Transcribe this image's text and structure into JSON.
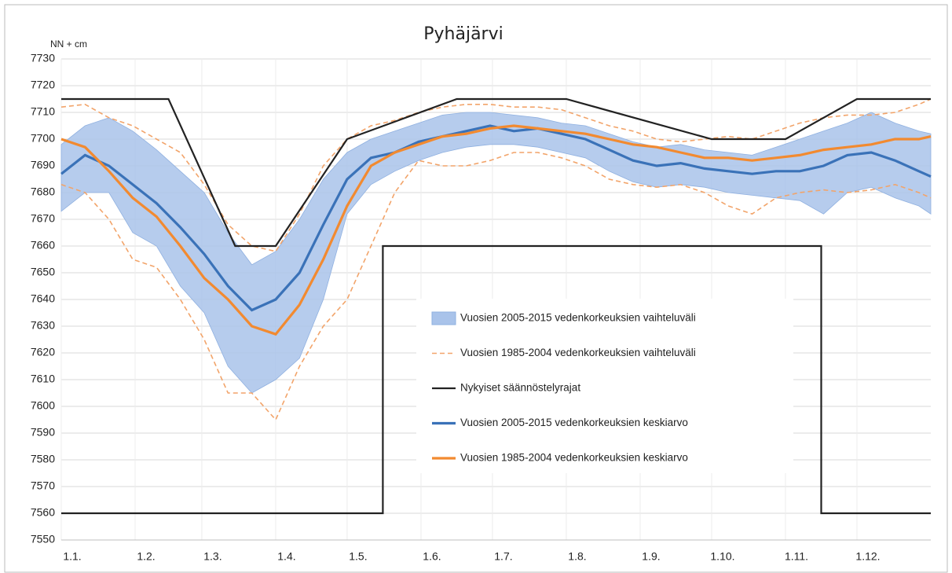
{
  "chart_data": {
    "type": "line",
    "title": "Pyhäjärvi",
    "y_label": "NN + cm",
    "xlim": [
      0,
      365
    ],
    "xticks": [
      {
        "value": 0,
        "label": "1.1."
      },
      {
        "value": 31,
        "label": "1.2."
      },
      {
        "value": 59,
        "label": "1.3."
      },
      {
        "value": 90,
        "label": "1.4."
      },
      {
        "value": 120,
        "label": "1.5."
      },
      {
        "value": 151,
        "label": "1.6."
      },
      {
        "value": 181,
        "label": "1.7."
      },
      {
        "value": 212,
        "label": "1.8."
      },
      {
        "value": 243,
        "label": "1.9."
      },
      {
        "value": 273,
        "label": "1.10."
      },
      {
        "value": 304,
        "label": "1.11."
      },
      {
        "value": 334,
        "label": "1.12."
      }
    ],
    "ylim": [
      7550,
      7730
    ],
    "yticks": [
      7550,
      7560,
      7570,
      7580,
      7590,
      7600,
      7610,
      7620,
      7630,
      7640,
      7650,
      7660,
      7670,
      7680,
      7690,
      7700,
      7710,
      7720,
      7730
    ],
    "grid": true,
    "x": [
      0,
      10,
      20,
      30,
      40,
      50,
      60,
      70,
      80,
      90,
      100,
      110,
      120,
      130,
      140,
      150,
      160,
      170,
      180,
      190,
      200,
      210,
      220,
      230,
      240,
      250,
      260,
      270,
      280,
      290,
      300,
      310,
      320,
      330,
      340,
      350,
      360,
      365
    ],
    "series": [
      {
        "name": "Vuosien 2005-2015 vedenkorkeuksien vaihteluväli",
        "style": "band",
        "color": "#a9c3ea",
        "upper": [
          7698,
          7705,
          7708,
          7703,
          7696,
          7688,
          7680,
          7665,
          7653,
          7658,
          7670,
          7685,
          7695,
          7700,
          7703,
          7706,
          7709,
          7710,
          7710,
          7709,
          7708,
          7706,
          7705,
          7702,
          7699,
          7697,
          7698,
          7696,
          7695,
          7694,
          7697,
          7700,
          7703,
          7706,
          7710,
          7706,
          7703,
          7702
        ],
        "lower": [
          7673,
          7680,
          7680,
          7665,
          7660,
          7645,
          7635,
          7615,
          7605,
          7610,
          7618,
          7640,
          7672,
          7683,
          7688,
          7692,
          7695,
          7697,
          7698,
          7698,
          7697,
          7695,
          7693,
          7688,
          7684,
          7682,
          7683,
          7682,
          7680,
          7679,
          7678,
          7677,
          7672,
          7680,
          7682,
          7678,
          7675,
          7672
        ]
      },
      {
        "name": "Vuosien 1985-2004 vedenkorkeuksien vaihteluväli",
        "style": "dashed",
        "color": "#f2a46a",
        "upper": [
          7712,
          7713,
          7708,
          7705,
          7700,
          7695,
          7683,
          7668,
          7660,
          7658,
          7672,
          7690,
          7700,
          7705,
          7707,
          7710,
          7712,
          7713,
          7713,
          7712,
          7712,
          7711,
          7708,
          7705,
          7703,
          7700,
          7699,
          7700,
          7701,
          7700,
          7703,
          7706,
          7708,
          7709,
          7709,
          7710,
          7713,
          7715
        ],
        "lower": [
          7683,
          7680,
          7670,
          7655,
          7652,
          7640,
          7625,
          7605,
          7605,
          7595,
          7615,
          7630,
          7640,
          7660,
          7680,
          7692,
          7690,
          7690,
          7692,
          7695,
          7695,
          7693,
          7690,
          7685,
          7683,
          7682,
          7683,
          7680,
          7675,
          7672,
          7678,
          7680,
          7681,
          7680,
          7681,
          7683,
          7680,
          7678
        ]
      },
      {
        "name": "Nykyiset säännöstelyrajat",
        "style": "line",
        "color": "#222222",
        "x": [
          0,
          45,
          73,
          90,
          120,
          166,
          212,
          273,
          304,
          334,
          365,
          null,
          0,
          135,
          135,
          319,
          319,
          365
        ],
        "values": [
          7715,
          7715,
          7660,
          7660,
          7700,
          7715,
          7715,
          7700,
          7700,
          7715,
          7715,
          null,
          7560,
          7560,
          7660,
          7660,
          7560,
          7560
        ]
      },
      {
        "name": "Vuosien 2005-2015 vedenkorkeuksien keskiarvo",
        "style": "line",
        "color": "#3a72b8",
        "values": [
          7687,
          7694,
          7690,
          7683,
          7676,
          7667,
          7657,
          7645,
          7636,
          7640,
          7650,
          7668,
          7685,
          7693,
          7695,
          7699,
          7701,
          7703,
          7705,
          7703,
          7704,
          7702,
          7700,
          7696,
          7692,
          7690,
          7691,
          7689,
          7688,
          7687,
          7688,
          7688,
          7690,
          7694,
          7695,
          7692,
          7688,
          7686
        ]
      },
      {
        "name": "Vuosien 1985-2004 vedenkorkeuksien keskiarvo",
        "style": "line",
        "color": "#f28a30",
        "values": [
          7700,
          7697,
          7688,
          7678,
          7671,
          7660,
          7648,
          7640,
          7630,
          7627,
          7638,
          7655,
          7675,
          7690,
          7695,
          7698,
          7701,
          7702,
          7704,
          7705,
          7704,
          7703,
          7702,
          7700,
          7698,
          7697,
          7695,
          7693,
          7693,
          7692,
          7693,
          7694,
          7696,
          7697,
          7698,
          7700,
          7700,
          7701
        ]
      }
    ]
  }
}
